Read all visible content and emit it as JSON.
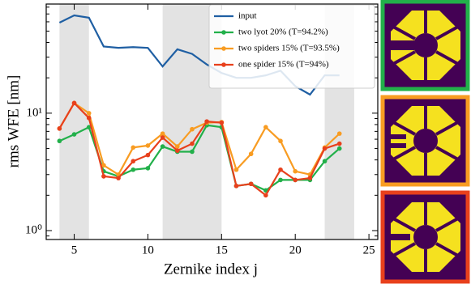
{
  "chart_data": {
    "type": "line",
    "xlabel": "Zernike index j",
    "ylabel": "rms WFE [nm]",
    "log_y": true,
    "xlim": [
      3.1,
      25.6
    ],
    "ylim": [
      0.84,
      85
    ],
    "xticks": [
      5,
      10,
      15,
      20,
      25
    ],
    "yticks": [
      {
        "value": 1,
        "label": "10⁰"
      },
      {
        "value": 10,
        "label": "10¹"
      }
    ],
    "yminor_ticks": [
      0.9,
      2,
      3,
      4,
      5,
      6,
      7,
      8,
      9,
      20,
      30,
      40,
      50,
      60,
      70,
      80
    ],
    "shaded_regions": [
      [
        4,
        6
      ],
      [
        11,
        15
      ],
      [
        22,
        24
      ]
    ],
    "shade_color": "#e3e3e3",
    "legend": "upper right",
    "x": [
      4,
      5,
      6,
      7,
      8,
      9,
      10,
      11,
      12,
      13,
      14,
      15,
      16,
      17,
      18,
      19,
      20,
      21,
      22,
      23
    ],
    "series": [
      {
        "name": "input",
        "color": "#1f5fa3",
        "markers": false,
        "values": [
          59,
          68,
          65,
          37,
          36,
          36.5,
          36,
          25,
          35,
          32,
          26,
          22,
          20,
          20,
          21,
          23,
          17,
          14.4,
          21,
          21
        ]
      },
      {
        "name": "two lyot 20% (T=94.2%)",
        "color": "#22b04a",
        "markers": true,
        "values": [
          5.8,
          6.6,
          7.6,
          3.2,
          2.9,
          3.3,
          3.4,
          5.2,
          4.7,
          4.7,
          7.9,
          7.6,
          2.4,
          2.5,
          2.2,
          2.7,
          2.7,
          2.7,
          3.9,
          5.0
        ]
      },
      {
        "name": "two spiders 15% (T=93.5%)",
        "color": "#f89c22",
        "markers": true,
        "values": [
          7.4,
          12.2,
          10,
          3.6,
          3.0,
          5.1,
          5.3,
          6.7,
          5.2,
          7.3,
          8.3,
          8.4,
          3.3,
          4.5,
          7.6,
          5.8,
          3.2,
          3.0,
          5.1,
          6.7
        ]
      },
      {
        "name": "one spider 15% (T=94%)",
        "color": "#e8401c",
        "markers": true,
        "values": [
          7.4,
          12.2,
          9.1,
          2.9,
          2.8,
          3.9,
          4.4,
          6.2,
          4.8,
          5.5,
          8.5,
          8.3,
          2.4,
          2.5,
          2.0,
          3.3,
          2.7,
          2.8,
          5.0,
          5.5
        ]
      }
    ]
  }
}
